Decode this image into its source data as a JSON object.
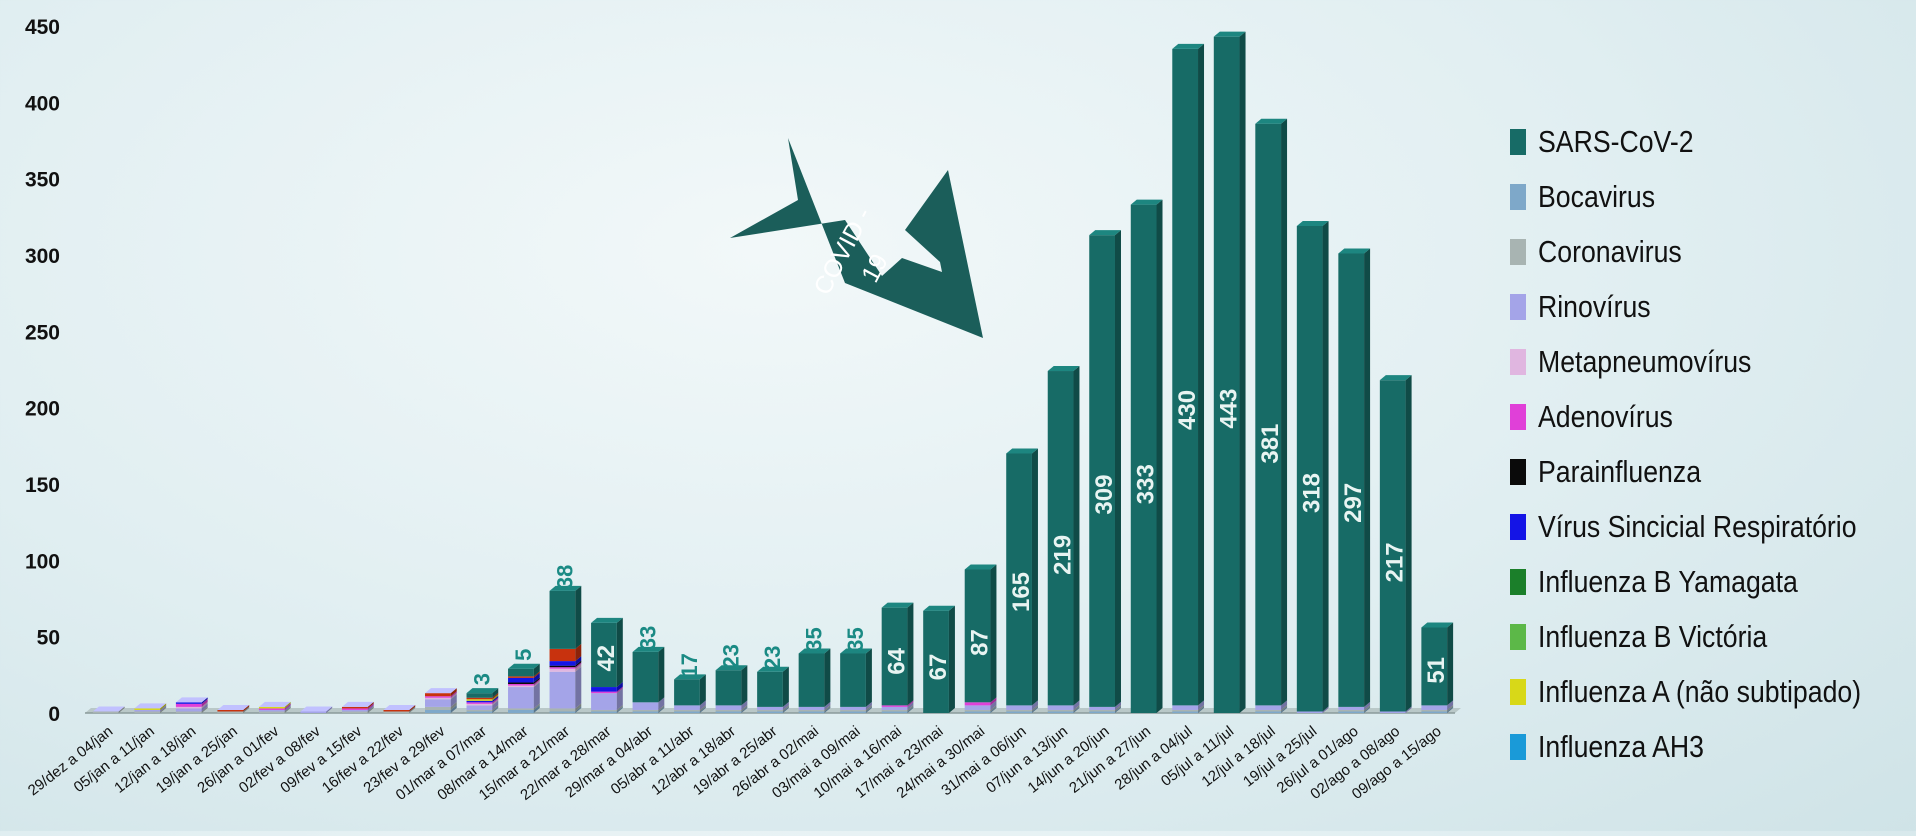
{
  "chart_data": {
    "type": "bar",
    "stacked": true,
    "ylim": [
      0,
      450
    ],
    "yticks": [
      0,
      50,
      100,
      150,
      200,
      250,
      300,
      350,
      400,
      450
    ],
    "grid": false,
    "legend_position": "right",
    "categories": [
      "29/dez a 04/jan",
      "05/jan a 11/jan",
      "12/jan a 18/jan",
      "19/jan a 25/jan",
      "26/jan a 01/fev",
      "02/fev a 08/fev",
      "09/fev a 15/fev",
      "16/fev a 22/fev",
      "23/fev a 29/fev",
      "01/mar a 07/mar",
      "08/mar a 14/mar",
      "15/mar a 21/mar",
      "22/mar a 28/mar",
      "29/mar a 04/abr",
      "05/abr a 11/abr",
      "12/abr a 18/abr",
      "19/abr a 25/abr",
      "26/abr a 02/mai",
      "03/mai a 09/mai",
      "10/mai a 16/mai",
      "17/mai a 23/mai",
      "24/mai a 30/mai",
      "31/mai a 06/jun",
      "07/jun a 13/jun",
      "14/jun a 20/jun",
      "21/jun a 27/jun",
      "28/jun a 04/jul",
      "05/jul a 11/jul",
      "12/jul a 18/jul",
      "19/jul a 25/jul",
      "26/jul a 01/ago",
      "02/ago a 08/ago",
      "09/ago a 15/ago"
    ],
    "series": [
      {
        "name": "SARS-CoV-2",
        "color": "#176b66",
        "values": [
          0,
          0,
          0,
          0,
          0,
          0,
          0,
          0,
          0,
          3,
          5,
          38,
          42,
          33,
          17,
          23,
          23,
          35,
          35,
          64,
          67,
          87,
          165,
          219,
          309,
          333,
          430,
          443,
          381,
          318,
          297,
          217,
          51
        ],
        "labels": [
          "",
          "",
          "",
          "",
          "",
          "",
          "",
          "",
          "",
          "3",
          "5",
          "38",
          "42",
          "33",
          "17",
          "23",
          "23",
          "35",
          "35",
          "64",
          "67",
          "87",
          "165",
          "219",
          "309",
          "333",
          "430",
          "443",
          "381",
          "318",
          "297",
          "217",
          "51"
        ]
      },
      {
        "name": "Bocavirus",
        "color": "#7ea8c9",
        "values": [
          0,
          0,
          0,
          0,
          0,
          0,
          0,
          0,
          2,
          1,
          2,
          1,
          1,
          1,
          1,
          1,
          1,
          1,
          1,
          1,
          0,
          1,
          1,
          1,
          1,
          0,
          1,
          0,
          1,
          0,
          1,
          0,
          1
        ]
      },
      {
        "name": "Coronavirus",
        "color": "#a8b4b2",
        "values": [
          1,
          1,
          1,
          1,
          1,
          0,
          1,
          1,
          2,
          1,
          1,
          2,
          1,
          1,
          1,
          1,
          1,
          1,
          1,
          1,
          0,
          1,
          1,
          1,
          1,
          0,
          1,
          0,
          1,
          0,
          1,
          0,
          1
        ]
      },
      {
        "name": "Rinovírus",
        "color": "#a4a4e8",
        "values": [
          0,
          1,
          2,
          0,
          1,
          1,
          1,
          0,
          5,
          3,
          14,
          24,
          11,
          5,
          3,
          3,
          2,
          2,
          2,
          2,
          0,
          3,
          3,
          3,
          2,
          0,
          3,
          0,
          3,
          1,
          2,
          1,
          3
        ]
      },
      {
        "name": "Metapneumovírus",
        "color": "#e0b6e0",
        "values": [
          0,
          0,
          1,
          0,
          0,
          0,
          0,
          0,
          1,
          1,
          1,
          2,
          0,
          0,
          0,
          0,
          0,
          0,
          0,
          0,
          0,
          0,
          0,
          0,
          0,
          0,
          0,
          0,
          0,
          0,
          0,
          0,
          0
        ]
      },
      {
        "name": "Adenovírus",
        "color": "#e040d8",
        "values": [
          0,
          0,
          2,
          0,
          1,
          0,
          1,
          0,
          1,
          1,
          1,
          1,
          1,
          0,
          0,
          0,
          0,
          0,
          0,
          1,
          0,
          2,
          0,
          0,
          0,
          0,
          0,
          0,
          0,
          0,
          0,
          0,
          0
        ]
      },
      {
        "name": "Parainfluenza",
        "color": "#0a0a0a",
        "values": [
          0,
          0,
          0,
          0,
          0,
          0,
          0,
          0,
          0,
          0,
          1,
          1,
          0,
          0,
          0,
          0,
          0,
          0,
          0,
          0,
          0,
          0,
          0,
          0,
          0,
          0,
          0,
          0,
          0,
          0,
          0,
          0,
          0
        ]
      },
      {
        "name": "Vírus Sincicial Respiratório",
        "color": "#1414e6",
        "values": [
          0,
          0,
          1,
          0,
          0,
          0,
          0,
          0,
          0,
          1,
          3,
          3,
          3,
          0,
          0,
          0,
          0,
          0,
          0,
          0,
          0,
          0,
          0,
          0,
          0,
          0,
          0,
          0,
          0,
          0,
          0,
          0,
          0
        ]
      },
      {
        "name": "Influenza B Yamagata",
        "color": "#1b7f2a",
        "values": [
          0,
          0,
          0,
          0,
          0,
          0,
          0,
          0,
          0,
          0,
          0,
          0,
          0,
          0,
          0,
          0,
          0,
          0,
          0,
          0,
          0,
          0,
          0,
          0,
          0,
          0,
          0,
          0,
          0,
          0,
          0,
          0,
          0
        ]
      },
      {
        "name": "Influenza B Victória",
        "color": "#5cb848",
        "values": [
          0,
          0,
          0,
          0,
          0,
          0,
          0,
          0,
          0,
          0,
          0,
          0,
          0,
          0,
          0,
          0,
          0,
          0,
          0,
          0,
          0,
          0,
          0,
          0,
          0,
          0,
          0,
          0,
          0,
          0,
          0,
          0,
          0
        ]
      },
      {
        "name": "Influenza A (não subtipado)",
        "color": "#d8d818",
        "values": [
          0,
          1,
          0,
          0,
          1,
          0,
          0,
          0,
          0,
          1,
          0,
          0,
          0,
          0,
          0,
          0,
          0,
          0,
          0,
          0,
          0,
          0,
          0,
          0,
          0,
          0,
          0,
          0,
          0,
          0,
          0,
          0,
          0
        ]
      },
      {
        "name": "Influenza AH3",
        "color": "#1a9ad8",
        "values": [
          0,
          0,
          0,
          0,
          0,
          0,
          0,
          0,
          0,
          0,
          0,
          0,
          0,
          0,
          0,
          0,
          0,
          0,
          0,
          0,
          0,
          0,
          0,
          0,
          0,
          0,
          0,
          0,
          0,
          0,
          0,
          0,
          0
        ]
      },
      {
        "name": "",
        "color": "#c8320e",
        "values": [
          0,
          0,
          0,
          1,
          0,
          0,
          1,
          1,
          2,
          1,
          1,
          8,
          0,
          0,
          0,
          0,
          0,
          0,
          0,
          0,
          0,
          0,
          0,
          0,
          0,
          0,
          0,
          0,
          0,
          0,
          0,
          0,
          0
        ]
      }
    ],
    "annotation": {
      "text_line1": "COVID -",
      "text_line2": "19",
      "color": "#1b5e5a"
    }
  }
}
